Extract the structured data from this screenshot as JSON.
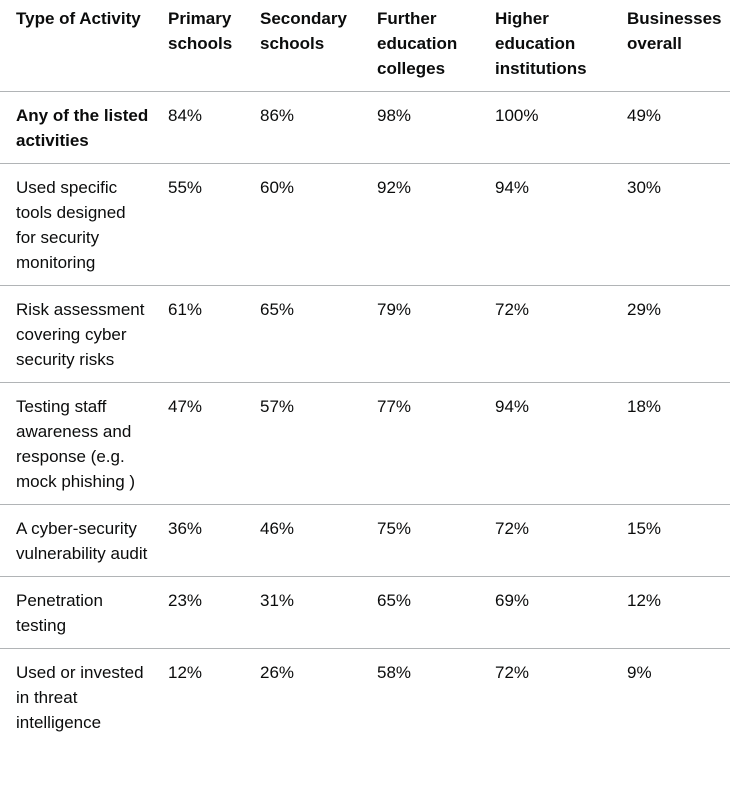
{
  "table": {
    "header": [
      "Type of Activity",
      "Primary schools",
      "Secondary schools",
      "Further education colleges",
      "Higher education institutions",
      "Businesses overall"
    ],
    "rows": [
      [
        "Any of the listed activities",
        "84%",
        "86%",
        "98%",
        "100%",
        "49%"
      ],
      [
        "Used specific tools designed for security monitoring",
        "55%",
        "60%",
        "92%",
        "94%",
        "30%"
      ],
      [
        "Risk assessment covering cyber security risks",
        "61%",
        "65%",
        "79%",
        "72%",
        "29%"
      ],
      [
        "Testing staff awareness and response (e.g. mock phishing )",
        "47%",
        "57%",
        "77%",
        "94%",
        "18%"
      ],
      [
        "A cyber-security vulnerability audit",
        "36%",
        "46%",
        "75%",
        "72%",
        "15%"
      ],
      [
        "Penetration testing",
        "23%",
        "31%",
        "65%",
        "69%",
        "12%"
      ],
      [
        "Used or invested in threat intelligence",
        "12%",
        "26%",
        "58%",
        "72%",
        "9%"
      ]
    ]
  }
}
